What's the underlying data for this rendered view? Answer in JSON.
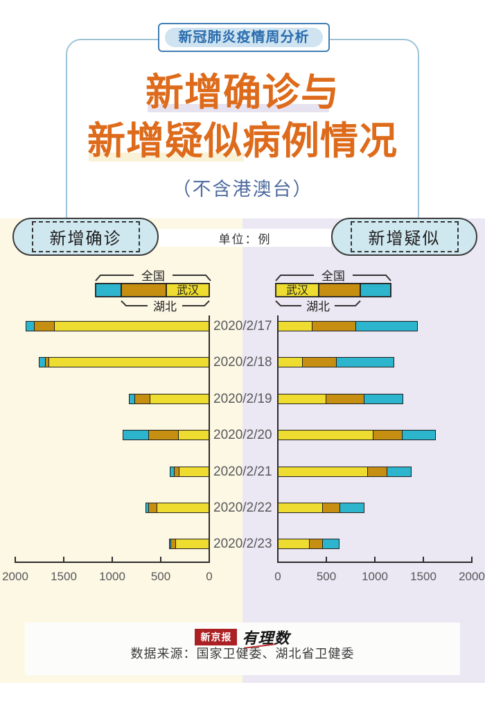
{
  "badge": {
    "label": "新冠肺炎疫情周分析"
  },
  "title": {
    "line1": "新增确诊与",
    "line2": "新增疑似病例情况",
    "subtitle": "（不含港澳台）"
  },
  "header": {
    "left_label": "新增确诊",
    "right_label": "新增疑似",
    "unit": "单位：例"
  },
  "legend": {
    "national": "全国",
    "wuhan": "武汉",
    "hubei": "湖北"
  },
  "colors": {
    "wuhan_yellow": "#eedd30",
    "hubei_orange": "#c68f12",
    "national_cyan": "#2db5cd",
    "bar_border": "#1f1f1f",
    "title_orange": "#dd6b1b",
    "badge_blue": "#2a6cae",
    "left_panel_bg": "#fdf8e4",
    "right_panel_bg": "#ebe7f3"
  },
  "chart_data": [
    {
      "type": "bar",
      "title": "新增确诊",
      "direction": "left",
      "unit": "例",
      "categories": [
        "2020/2/17",
        "2020/2/18",
        "2020/2/19",
        "2020/2/20",
        "2020/2/21",
        "2020/2/22",
        "2020/2/23"
      ],
      "series": [
        {
          "name": "武汉",
          "color": "#eedd30",
          "values": [
            1600,
            1660,
            615,
            319,
            314,
            541,
            348
          ]
        },
        {
          "name": "湖北（除武汉）",
          "color": "#c68f12",
          "values": [
            207,
            33,
            160,
            312,
            52,
            89,
            50
          ]
        },
        {
          "name": "全国（除湖北）",
          "color": "#2db5cd",
          "values": [
            79,
            56,
            45,
            258,
            31,
            18,
            11
          ]
        }
      ],
      "xlim": [
        0,
        2000
      ],
      "ticks": [
        "2000",
        "1500",
        "1000",
        "500",
        "0"
      ]
    },
    {
      "type": "bar",
      "title": "新增疑似",
      "direction": "right",
      "unit": "例",
      "categories": [
        "2020/2/17",
        "2020/2/18",
        "2020/2/19",
        "2020/2/20",
        "2020/2/21",
        "2020/2/22",
        "2020/2/23"
      ],
      "series": [
        {
          "name": "武汉",
          "color": "#eedd30",
          "values": [
            345,
            240,
            482,
            971,
            917,
            449,
            317
          ]
        },
        {
          "name": "湖北（除武汉）",
          "color": "#c68f12",
          "values": [
            445,
            355,
            395,
            300,
            200,
            180,
            133
          ]
        },
        {
          "name": "全国（除湖北）",
          "color": "#2db5cd",
          "values": [
            642,
            590,
            400,
            343,
            244,
            253,
            170
          ]
        }
      ],
      "xlim": [
        0,
        2000
      ],
      "ticks": [
        "0",
        "500",
        "1000",
        "1500",
        "2000"
      ]
    }
  ],
  "footer": {
    "logo1": "新京报",
    "logo2": "有理数",
    "source": "数据来源：国家卫健委、湖北省卫健委"
  }
}
